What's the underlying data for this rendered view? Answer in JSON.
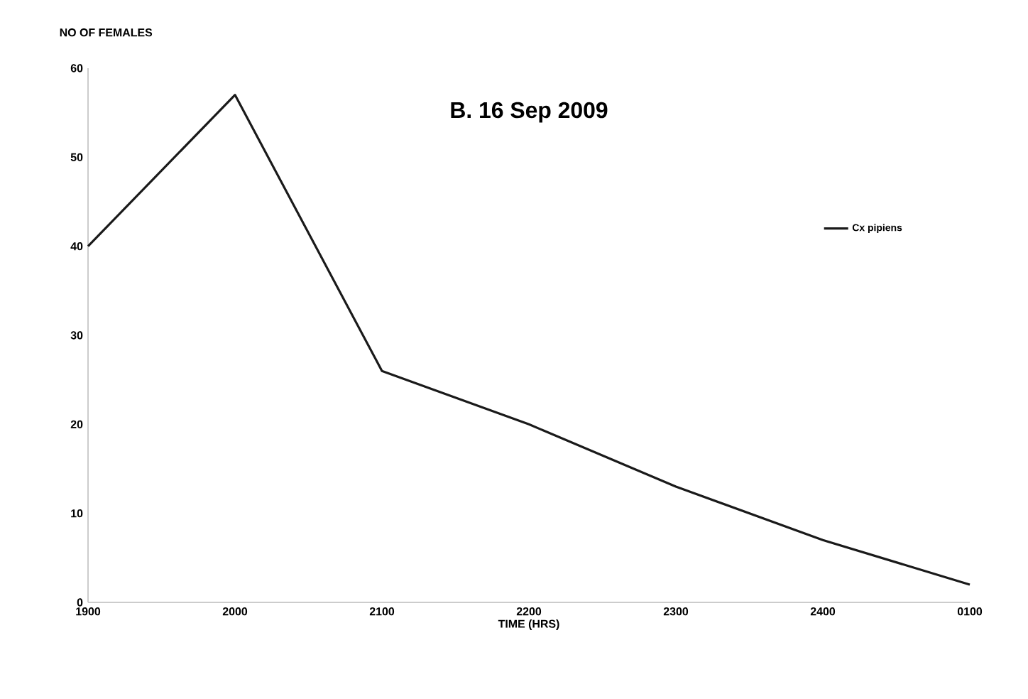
{
  "chart_data": {
    "type": "line",
    "title": "B.  16 Sep 2009",
    "xlabel": "TIME (HRS)",
    "ylabel": "NO OF FEMALES",
    "categories": [
      "1900",
      "2000",
      "2100",
      "2200",
      "2300",
      "2400",
      "0100"
    ],
    "series": [
      {
        "name": "Cx pipiens",
        "color": "#1a1a1a",
        "values": [
          40,
          57,
          26,
          20,
          13,
          7,
          2
        ]
      }
    ],
    "ylim": [
      0,
      60
    ],
    "yticks": [
      0,
      10,
      20,
      30,
      40,
      50,
      60
    ],
    "grid": false,
    "legend": "right",
    "marker": "none",
    "line_style": "solid"
  }
}
